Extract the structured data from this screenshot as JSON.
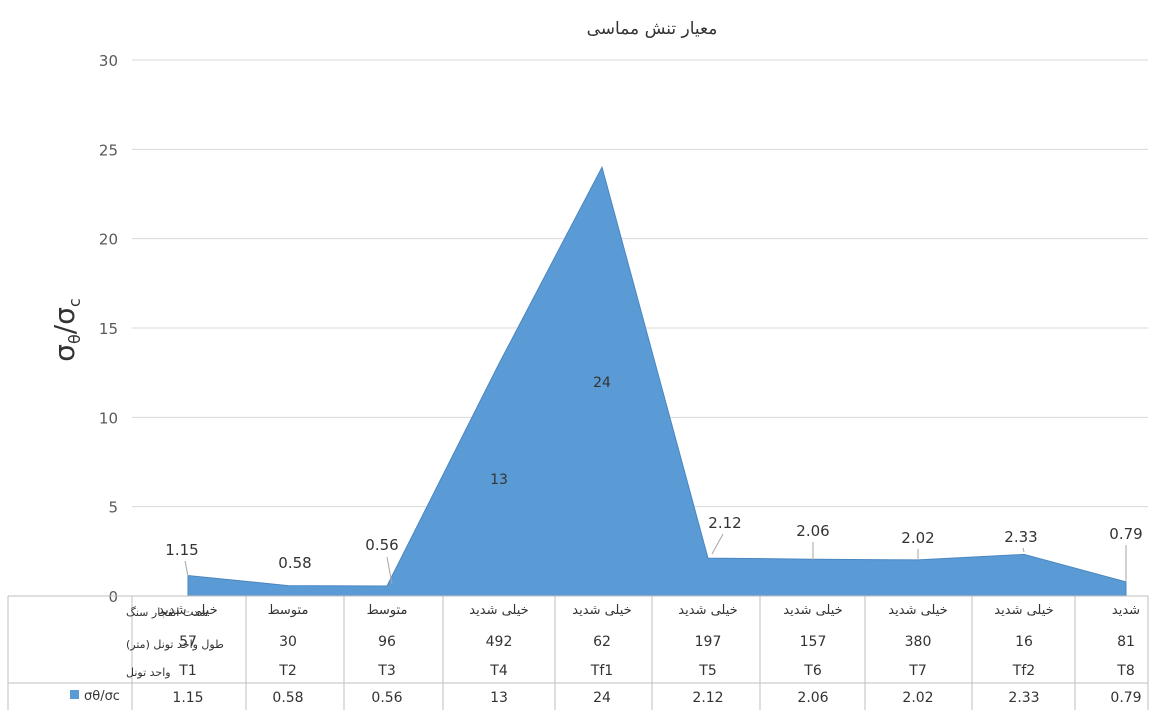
{
  "chart_data": {
    "type": "area",
    "title": "معیار تنش مماسی",
    "ylabel_main": "σ",
    "ylabel_main_sub": "θ",
    "ylabel_den": "σ",
    "ylabel_den_sub": "c",
    "ylim": [
      0,
      30
    ],
    "yticks": [
      0,
      5,
      10,
      15,
      20,
      25,
      30
    ],
    "grid": true,
    "categories": [
      "T1",
      "T2",
      "T3",
      "T4",
      "Tf1",
      "T5",
      "T6",
      "T7",
      "Tf2",
      "T8"
    ],
    "series": [
      {
        "name": "σθ/σc",
        "color": "#5b9bd5",
        "values": [
          1.15,
          0.58,
          0.56,
          13,
          24,
          2.12,
          2.06,
          2.02,
          2.33,
          0.79
        ]
      }
    ],
    "data_labels": [
      "1.15",
      "0.58",
      "0.56",
      "13",
      "24",
      "2.12",
      "2.06",
      "2.02",
      "2.33",
      "0.79"
    ],
    "table": {
      "row_labels": [
        "شدت انفجار سنگ",
        "طول واحد تونل (متر)",
        "واحد تونل"
      ],
      "rows": [
        [
          "خیلی شدید",
          "متوسط",
          "متوسط",
          "خیلی شدید",
          "خیلی شدید",
          "خیلی شدید",
          "خیلی شدید",
          "خیلی شدید",
          "خیلی شدید",
          "شدید"
        ],
        [
          "57",
          "30",
          "96",
          "492",
          "62",
          "197",
          "157",
          "380",
          "16",
          "81"
        ],
        [
          "T1",
          "T2",
          "T3",
          "T4",
          "Tf1",
          "T5",
          "T6",
          "T7",
          "Tf2",
          "T8"
        ]
      ],
      "legend_label": "σθ/σc",
      "value_row": [
        "1.15",
        "0.58",
        "0.56",
        "13",
        "24",
        "2.12",
        "2.06",
        "2.02",
        "2.33",
        "0.79"
      ]
    }
  }
}
